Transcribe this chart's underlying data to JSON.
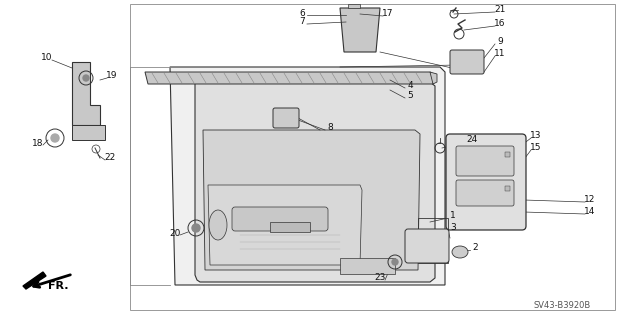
{
  "background_color": "#ffffff",
  "diagram_id": "SV43-B3920B",
  "fig_w": 6.4,
  "fig_h": 3.19,
  "dpi": 100
}
